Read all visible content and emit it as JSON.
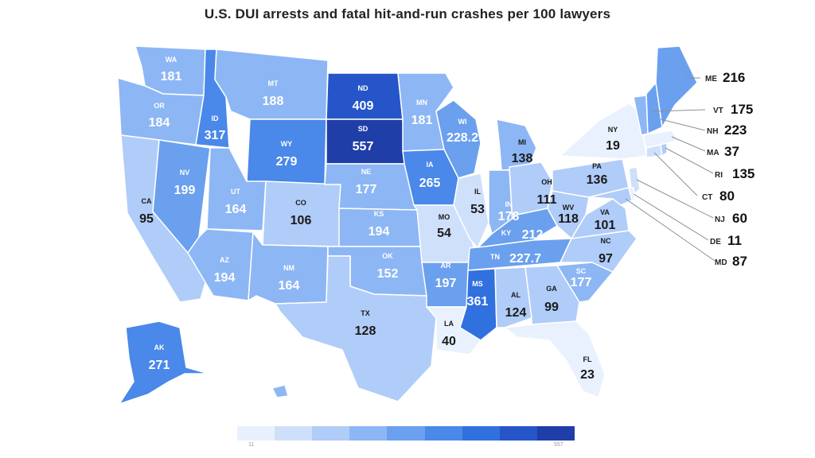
{
  "title": "U.S. DUI arrests and fatal hit-and-run crashes per 100 lawyers",
  "colors": {
    "scale": [
      "#e8f1fd",
      "#cfe0fb",
      "#b0ccf8",
      "#8db6f4",
      "#6aa0ee",
      "#4a88e9",
      "#3170df",
      "#2555c8",
      "#1f3ea8"
    ],
    "background": "#ffffff"
  },
  "legend": {
    "min_label": "11",
    "max_label": "557"
  },
  "map_data": {
    "type": "choropleth",
    "region": "United States",
    "states": [
      {
        "abbr": "WA",
        "value": "181"
      },
      {
        "abbr": "OR",
        "value": "184"
      },
      {
        "abbr": "CA",
        "value": "95"
      },
      {
        "abbr": "ID",
        "value": "317"
      },
      {
        "abbr": "NV",
        "value": "199"
      },
      {
        "abbr": "MT",
        "value": "188"
      },
      {
        "abbr": "WY",
        "value": "279"
      },
      {
        "abbr": "UT",
        "value": "164"
      },
      {
        "abbr": "AZ",
        "value": "194"
      },
      {
        "abbr": "CO",
        "value": "106"
      },
      {
        "abbr": "NM",
        "value": "164"
      },
      {
        "abbr": "ND",
        "value": "409"
      },
      {
        "abbr": "SD",
        "value": "557"
      },
      {
        "abbr": "NE",
        "value": "177"
      },
      {
        "abbr": "KS",
        "value": "194"
      },
      {
        "abbr": "OK",
        "value": "152"
      },
      {
        "abbr": "TX",
        "value": "128"
      },
      {
        "abbr": "MN",
        "value": "181"
      },
      {
        "abbr": "IA",
        "value": "265"
      },
      {
        "abbr": "MO",
        "value": "54"
      },
      {
        "abbr": "AR",
        "value": "197"
      },
      {
        "abbr": "LA",
        "value": "40"
      },
      {
        "abbr": "WI",
        "value": "228.2"
      },
      {
        "abbr": "IL",
        "value": "53"
      },
      {
        "abbr": "MI",
        "value": "138"
      },
      {
        "abbr": "IN",
        "value": "178"
      },
      {
        "abbr": "OH",
        "value": "111"
      },
      {
        "abbr": "KY",
        "value": "212"
      },
      {
        "abbr": "TN",
        "value": "227.7"
      },
      {
        "abbr": "MS",
        "value": "361"
      },
      {
        "abbr": "AL",
        "value": "124"
      },
      {
        "abbr": "GA",
        "value": "99"
      },
      {
        "abbr": "FL",
        "value": "23"
      },
      {
        "abbr": "SC",
        "value": "177"
      },
      {
        "abbr": "NC",
        "value": "97"
      },
      {
        "abbr": "VA",
        "value": "101"
      },
      {
        "abbr": "WV",
        "value": "118"
      },
      {
        "abbr": "PA",
        "value": "136"
      },
      {
        "abbr": "NY",
        "value": "19"
      },
      {
        "abbr": "AK",
        "value": "271"
      },
      {
        "abbr": "HI",
        "value": ""
      }
    ],
    "northeast_callouts": [
      {
        "abbr": "ME",
        "value": "216"
      },
      {
        "abbr": "VT",
        "value": "175"
      },
      {
        "abbr": "NH",
        "value": "223"
      },
      {
        "abbr": "MA",
        "value": "37"
      },
      {
        "abbr": "RI",
        "value": "135"
      },
      {
        "abbr": "CT",
        "value": "80"
      },
      {
        "abbr": "NJ",
        "value": "60"
      },
      {
        "abbr": "DE",
        "value": "11"
      },
      {
        "abbr": "MD",
        "value": "87"
      }
    ]
  }
}
